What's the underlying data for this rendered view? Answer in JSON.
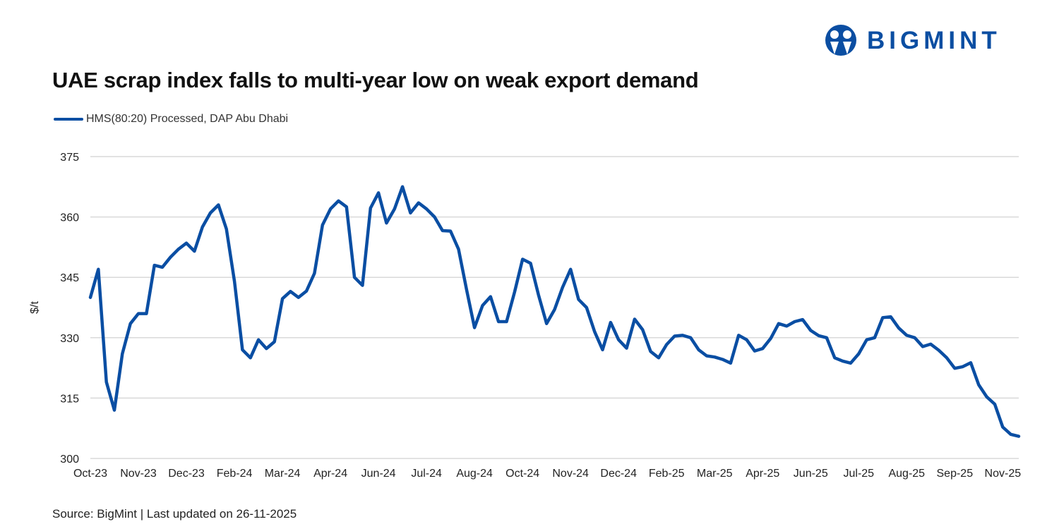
{
  "logo": {
    "text": "BIGMINT"
  },
  "source": "Source: BigMint | Last updated on 26-11-2025",
  "colors": {
    "line": "#0a4ea3",
    "grid": "#d9d9d9",
    "brand": "#0b4ea2"
  },
  "chart_data": {
    "type": "line",
    "title": "UAE scrap index falls to multi-year low on weak export demand",
    "xlabel": "",
    "ylabel": "$/t",
    "ylim": [
      300,
      375
    ],
    "yticks": [
      300,
      315,
      330,
      345,
      360,
      375
    ],
    "grid": true,
    "legend_position": "top-left",
    "x_tick_every": 6,
    "x_tick_labels": [
      "Oct-23",
      "Nov-23",
      "Dec-23",
      "Feb-24",
      "Mar-24",
      "Apr-24",
      "Jun-24",
      "Jul-24",
      "Aug-24",
      "Oct-24",
      "Nov-24",
      "Dec-24",
      "Feb-25",
      "Mar-25",
      "Apr-25",
      "Jun-25",
      "Jul-25",
      "Aug-25",
      "Sep-25",
      "Nov-25"
    ],
    "series": [
      {
        "name": "HMS(80:20) Processed, DAP Abu Dhabi",
        "values": [
          340,
          347,
          319,
          312,
          326,
          333.5,
          336,
          336,
          348,
          347.5,
          350,
          352,
          353.5,
          351.5,
          357.5,
          361,
          363,
          357,
          344,
          327,
          325,
          329.5,
          327.3,
          329,
          339.7,
          341.5,
          340,
          341.6,
          346,
          358,
          362,
          364,
          362.5,
          345,
          343,
          362.2,
          366,
          358.5,
          362,
          367.5,
          361,
          363.5,
          362,
          360,
          356.6,
          356.5,
          352,
          342,
          332.5,
          338,
          340.2,
          334,
          334,
          341.3,
          349.5,
          348.5,
          340.6,
          333.5,
          337,
          342.5,
          347,
          339.5,
          337.5,
          331.5,
          327,
          333.8,
          329.5,
          327.4,
          334.6,
          332,
          326.6,
          325,
          328.3,
          330.4,
          330.6,
          330,
          327,
          325.5,
          325.2,
          324.6,
          323.7,
          330.6,
          329.5,
          326.7,
          327.3,
          329.8,
          333.5,
          332.9,
          334,
          334.5,
          331.8,
          330.5,
          330,
          325,
          324.2,
          323.7,
          326,
          329.5,
          330,
          335,
          335.2,
          332.4,
          330.6,
          330,
          327.8,
          328.4,
          326.9,
          325,
          322.4,
          322.8,
          323.8,
          318.3,
          315.3,
          313.5,
          307.8,
          306,
          305.5
        ]
      }
    ]
  }
}
